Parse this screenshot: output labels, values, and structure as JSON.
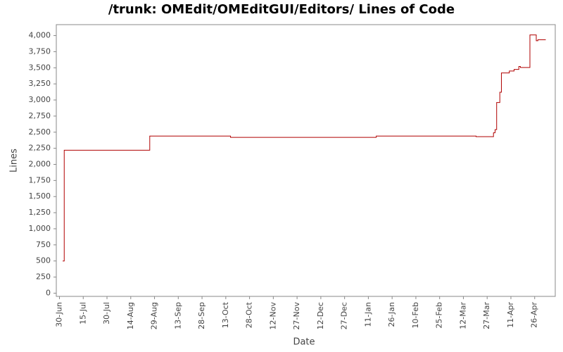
{
  "chart_data": {
    "type": "step-line",
    "title": "/trunk: OMEdit/OMEditGUI/Editors/ Lines of Code",
    "x_label": "Date",
    "y_label": "Lines",
    "x": [
      "2-Jul",
      "3-Jul",
      "26-Aug",
      "16-Oct",
      "16-Jan",
      "20-Mar",
      "31-Mar",
      "1-Apr",
      "2-Apr",
      "4-Apr",
      "5-Apr",
      "10-Apr",
      "13-Apr",
      "16-Apr",
      "17-Apr",
      "23-Apr",
      "27-Apr",
      "28-Apr",
      "3-May"
    ],
    "values": [
      500,
      2220,
      2440,
      2420,
      2440,
      2430,
      2490,
      2540,
      2960,
      3120,
      3420,
      3450,
      3475,
      3520,
      3505,
      4010,
      3920,
      3935,
      3935
    ],
    "color": "#b00000",
    "xlim": [
      "28-Jun",
      "9-May"
    ],
    "xticks": [
      "30-Jun",
      "15-Jul",
      "30-Jul",
      "14-Aug",
      "29-Aug",
      "13-Sep",
      "28-Sep",
      "13-Oct",
      "28-Oct",
      "12-Nov",
      "27-Nov",
      "12-Dec",
      "27-Dec",
      "11-Jan",
      "26-Jan",
      "10-Feb",
      "25-Feb",
      "12-Mar",
      "27-Mar",
      "11-Apr",
      "26-Apr"
    ],
    "ylim": [
      -50,
      4170
    ],
    "yticks": [
      0,
      250,
      500,
      750,
      {
        "value": 1000,
        "label": "1,000"
      },
      {
        "value": 1250,
        "label": "1,250"
      },
      {
        "value": 1500,
        "label": "1,500"
      },
      {
        "value": 1750,
        "label": "1,750"
      },
      {
        "value": 2000,
        "label": "2,000"
      },
      {
        "value": 2250,
        "label": "2,250"
      },
      {
        "value": 2500,
        "label": "2,500"
      },
      {
        "value": 2750,
        "label": "2,750"
      },
      {
        "value": 3000,
        "label": "3,000"
      },
      {
        "value": 3250,
        "label": "3,250"
      },
      {
        "value": 3500,
        "label": "3,500"
      },
      {
        "value": 3750,
        "label": "3,750"
      },
      {
        "value": 4000,
        "label": "4,000"
      }
    ],
    "grid": false
  }
}
